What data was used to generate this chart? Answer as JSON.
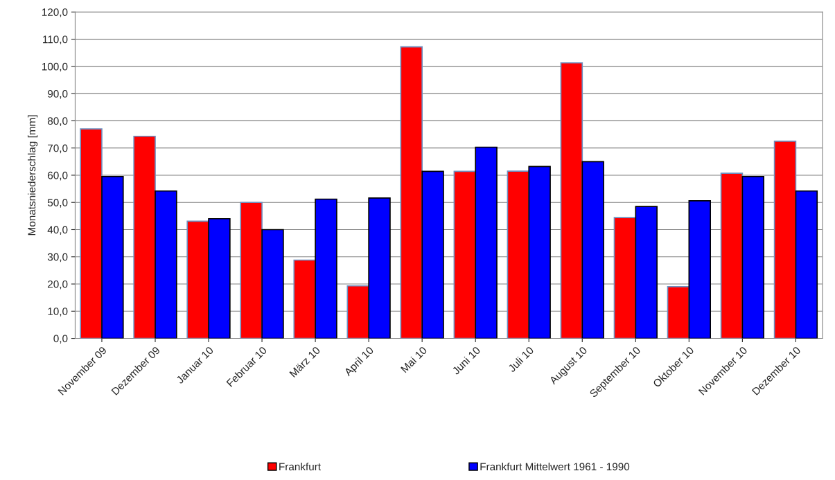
{
  "chart_data": {
    "type": "bar",
    "ylabel": "Monatsniederschlag [mm]",
    "categories": [
      "November 09",
      "Dezember 09",
      "Januar 10",
      "Februar 10",
      "März 10",
      "April 10",
      "Mai 10",
      "Juni 10",
      "Juli 10",
      "August 10",
      "September 10",
      "Oktober 10",
      "November 10",
      "Dezember 10"
    ],
    "series": [
      {
        "name": "Frankfurt",
        "color": "#ff0000",
        "values": [
          77.0,
          74.3,
          43.1,
          50.0,
          28.8,
          19.3,
          107.2,
          61.4,
          61.5,
          101.3,
          44.4,
          19.0,
          60.7,
          72.5
        ]
      },
      {
        "name": "Frankfurt Mittelwert 1961 - 1990",
        "color": "#0000ff",
        "values": [
          59.5,
          54.2,
          44.0,
          40.0,
          51.2,
          51.6,
          61.4,
          70.3,
          63.2,
          65.0,
          48.5,
          50.6,
          59.5,
          54.2
        ]
      }
    ],
    "ylim": [
      0,
      120
    ],
    "yticks": [
      {
        "value": 0,
        "label": "0,0"
      },
      {
        "value": 10,
        "label": "10,0"
      },
      {
        "value": 20,
        "label": "20,0"
      },
      {
        "value": 30,
        "label": "30,0"
      },
      {
        "value": 40,
        "label": "40,0"
      },
      {
        "value": 50,
        "label": "50,0"
      },
      {
        "value": 60,
        "label": "60,0"
      },
      {
        "value": 70,
        "label": "70,0"
      },
      {
        "value": 80,
        "label": "80,0"
      },
      {
        "value": 90,
        "label": "90,0"
      },
      {
        "value": 100,
        "label": "100,0"
      },
      {
        "value": 110,
        "label": "110,0"
      },
      {
        "value": 120,
        "label": "120,0"
      }
    ],
    "grid": "y",
    "legend": "bottom"
  }
}
